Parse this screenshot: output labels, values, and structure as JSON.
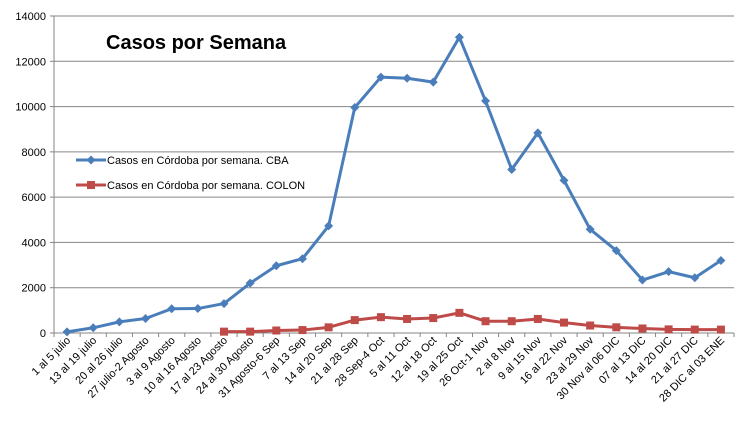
{
  "chart_data": {
    "type": "line",
    "title": "Casos por Semana",
    "xlabel": "",
    "ylabel": "",
    "ylim": [
      0,
      14000
    ],
    "yticks": [
      0,
      2000,
      4000,
      6000,
      8000,
      10000,
      12000,
      14000
    ],
    "grid": true,
    "legend_position": "left",
    "categories": [
      "1 al 5 julio",
      "13 al 19 julio",
      "20 al 26 julio",
      "27 julio-2 Agosto",
      "3 al 9 Agosto",
      "10 al 16 Agosto",
      "17 al 23 Agosto",
      "24 al 30 Agosto",
      "31 Agosto-6 Sep",
      "7 al 13 Sep",
      "14 al 20 Sep",
      "21 al 28 Sep",
      "28 Sep-4 Oct",
      "5 al 11 Oct",
      "12 al 18 Oct",
      "19 al 25 Oct",
      "26 Oct-1 Nov",
      "2 al 8 Nov",
      "9 al 15 Nov",
      "16 al 22 Nov",
      "23 al 29 Nov",
      "30 Nov al 06 DIC",
      "07 al 13 DIC",
      "14 al 20 DIC",
      "21 al 27 DIC",
      "28 DIC al 03 ENE"
    ],
    "series": [
      {
        "name": "Casos en Córdoba por semana. CBA",
        "color": "#4A7EBB",
        "marker": "diamond",
        "values": [
          50,
          230,
          490,
          640,
          1070,
          1080,
          1300,
          2200,
          2970,
          3280,
          4730,
          9960,
          11300,
          11250,
          11080,
          13060,
          10250,
          7220,
          8840,
          6740,
          4580,
          3640,
          2340,
          2710,
          2440,
          3200
        ]
      },
      {
        "name": "Casos en Córdoba por semana. COLON",
        "color": "#BE4B48",
        "marker": "square",
        "values": [
          null,
          null,
          null,
          null,
          null,
          null,
          60,
          60,
          110,
          130,
          250,
          570,
          700,
          620,
          660,
          890,
          520,
          520,
          620,
          460,
          330,
          250,
          200,
          160,
          150,
          150
        ]
      }
    ]
  }
}
